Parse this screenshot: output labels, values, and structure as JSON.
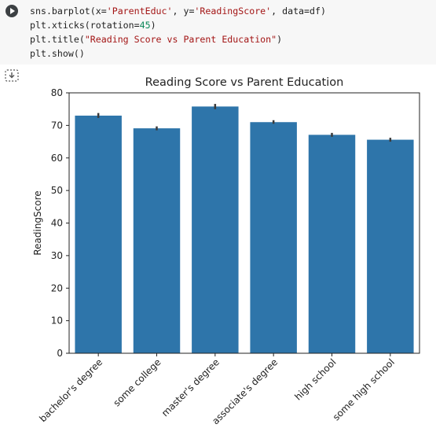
{
  "code_cell": {
    "lines": [
      [
        {
          "t": "sns.barplot(x="
        },
        {
          "t": "'ParentEduc'",
          "c": "str"
        },
        {
          "t": ", y="
        },
        {
          "t": "'ReadingScore'",
          "c": "str"
        },
        {
          "t": ", data=df)"
        }
      ],
      [
        {
          "t": "plt.xticks(rotation="
        },
        {
          "t": "45",
          "c": "num"
        },
        {
          "t": ")"
        }
      ],
      [
        {
          "t": "plt.title("
        },
        {
          "t": "\"Reading Score vs Parent Education\"",
          "c": "str"
        },
        {
          "t": ")"
        }
      ],
      [
        {
          "t": "plt.show()"
        }
      ]
    ]
  },
  "icons": {
    "run": "play-circle-icon",
    "output": "output-toggle-icon"
  },
  "chart_data": {
    "type": "bar",
    "title": "Reading Score vs Parent Education",
    "xlabel": "",
    "ylabel": "ReadingScore",
    "ylim": [
      0,
      80
    ],
    "yticks": [
      0,
      10,
      20,
      30,
      40,
      50,
      60,
      70,
      80
    ],
    "categories": [
      "bachelor's degree",
      "some college",
      "master's degree",
      "associate's degree",
      "high school",
      "some high school"
    ],
    "values": [
      73.0,
      69.1,
      75.8,
      71.0,
      67.1,
      65.6
    ],
    "error_low": [
      72.3,
      68.5,
      75.0,
      70.5,
      66.5,
      65.0
    ],
    "error_high": [
      73.8,
      69.7,
      76.6,
      71.6,
      67.7,
      66.2
    ],
    "bar_color": "#2e75aa",
    "error_color": "#3b3b3b",
    "xtick_rotation": 45,
    "grid": false
  }
}
